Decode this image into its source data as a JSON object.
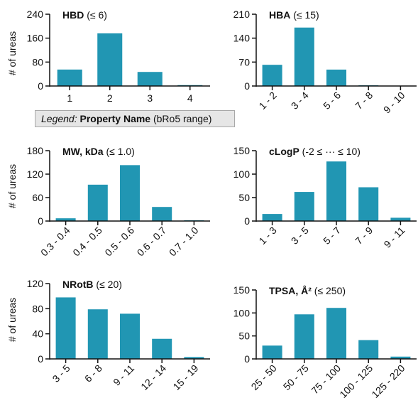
{
  "legend": {
    "prefix": "Legend:",
    "name": "Property Name",
    "range": "(bRo5 range)"
  },
  "style": {
    "bar_color": "#2196b3",
    "axis_color": "#111111"
  },
  "chart_data": [
    {
      "type": "bar",
      "title": "HBD",
      "subtitle": "(≤ 6)",
      "ylabel": "# of ureas",
      "ylim": [
        0,
        240
      ],
      "yticks": [
        0,
        80,
        160,
        240
      ],
      "categories": [
        "1",
        "2",
        "3",
        "4"
      ],
      "values": [
        55,
        176,
        47,
        3
      ],
      "rotate_labels": false
    },
    {
      "type": "bar",
      "title": "HBA",
      "subtitle": "(≤ 15)",
      "ylabel": "",
      "ylim": [
        0,
        210
      ],
      "yticks": [
        0,
        70,
        140,
        210
      ],
      "categories": [
        "1 - 2",
        "3 - 4",
        "5 - 6",
        "7 - 8",
        "9 - 10"
      ],
      "values": [
        62,
        171,
        48,
        2,
        1
      ],
      "rotate_labels": true
    },
    {
      "type": "bar",
      "title": "MW, kDa",
      "subtitle": "(≤ 1.0)",
      "ylabel": "# of ureas",
      "ylim": [
        0,
        180
      ],
      "yticks": [
        0,
        60,
        120,
        180
      ],
      "categories": [
        "0.3 - 0.4",
        "0.4 - 0.5",
        "0.5 - 0.6",
        "0.6 - 0.7",
        "0.7 - 1.0"
      ],
      "values": [
        7,
        93,
        143,
        36,
        2
      ],
      "rotate_labels": true
    },
    {
      "type": "bar",
      "title": "cLogP",
      "subtitle": "(-2 ≤ ··· ≤ 10)",
      "ylabel": "",
      "ylim": [
        0,
        150
      ],
      "yticks": [
        0,
        50,
        100,
        150
      ],
      "categories": [
        "1 - 3",
        "3 - 5",
        "5 - 7",
        "7 - 9",
        "9 - 11"
      ],
      "values": [
        15,
        62,
        127,
        72,
        7
      ],
      "rotate_labels": true
    },
    {
      "type": "bar",
      "title": "NRotB",
      "subtitle": "(≤ 20)",
      "ylabel": "# of ureas",
      "ylim": [
        0,
        120
      ],
      "yticks": [
        0,
        40,
        80,
        120
      ],
      "categories": [
        "3 - 5",
        "6 - 8",
        "9 - 11",
        "12 - 14",
        "15 - 19"
      ],
      "values": [
        98,
        79,
        72,
        32,
        3
      ],
      "rotate_labels": true
    },
    {
      "type": "bar",
      "title": "TPSA, Å²",
      "subtitle": "(≤ 250)",
      "ylabel": "",
      "ylim": [
        0,
        150
      ],
      "yticks": [
        0,
        50,
        100,
        150
      ],
      "categories": [
        "25 - 50",
        "50 - 75",
        "75 - 100",
        "100 - 125",
        "125 - 220"
      ],
      "values": [
        29,
        97,
        111,
        41,
        5
      ],
      "rotate_labels": true
    }
  ]
}
